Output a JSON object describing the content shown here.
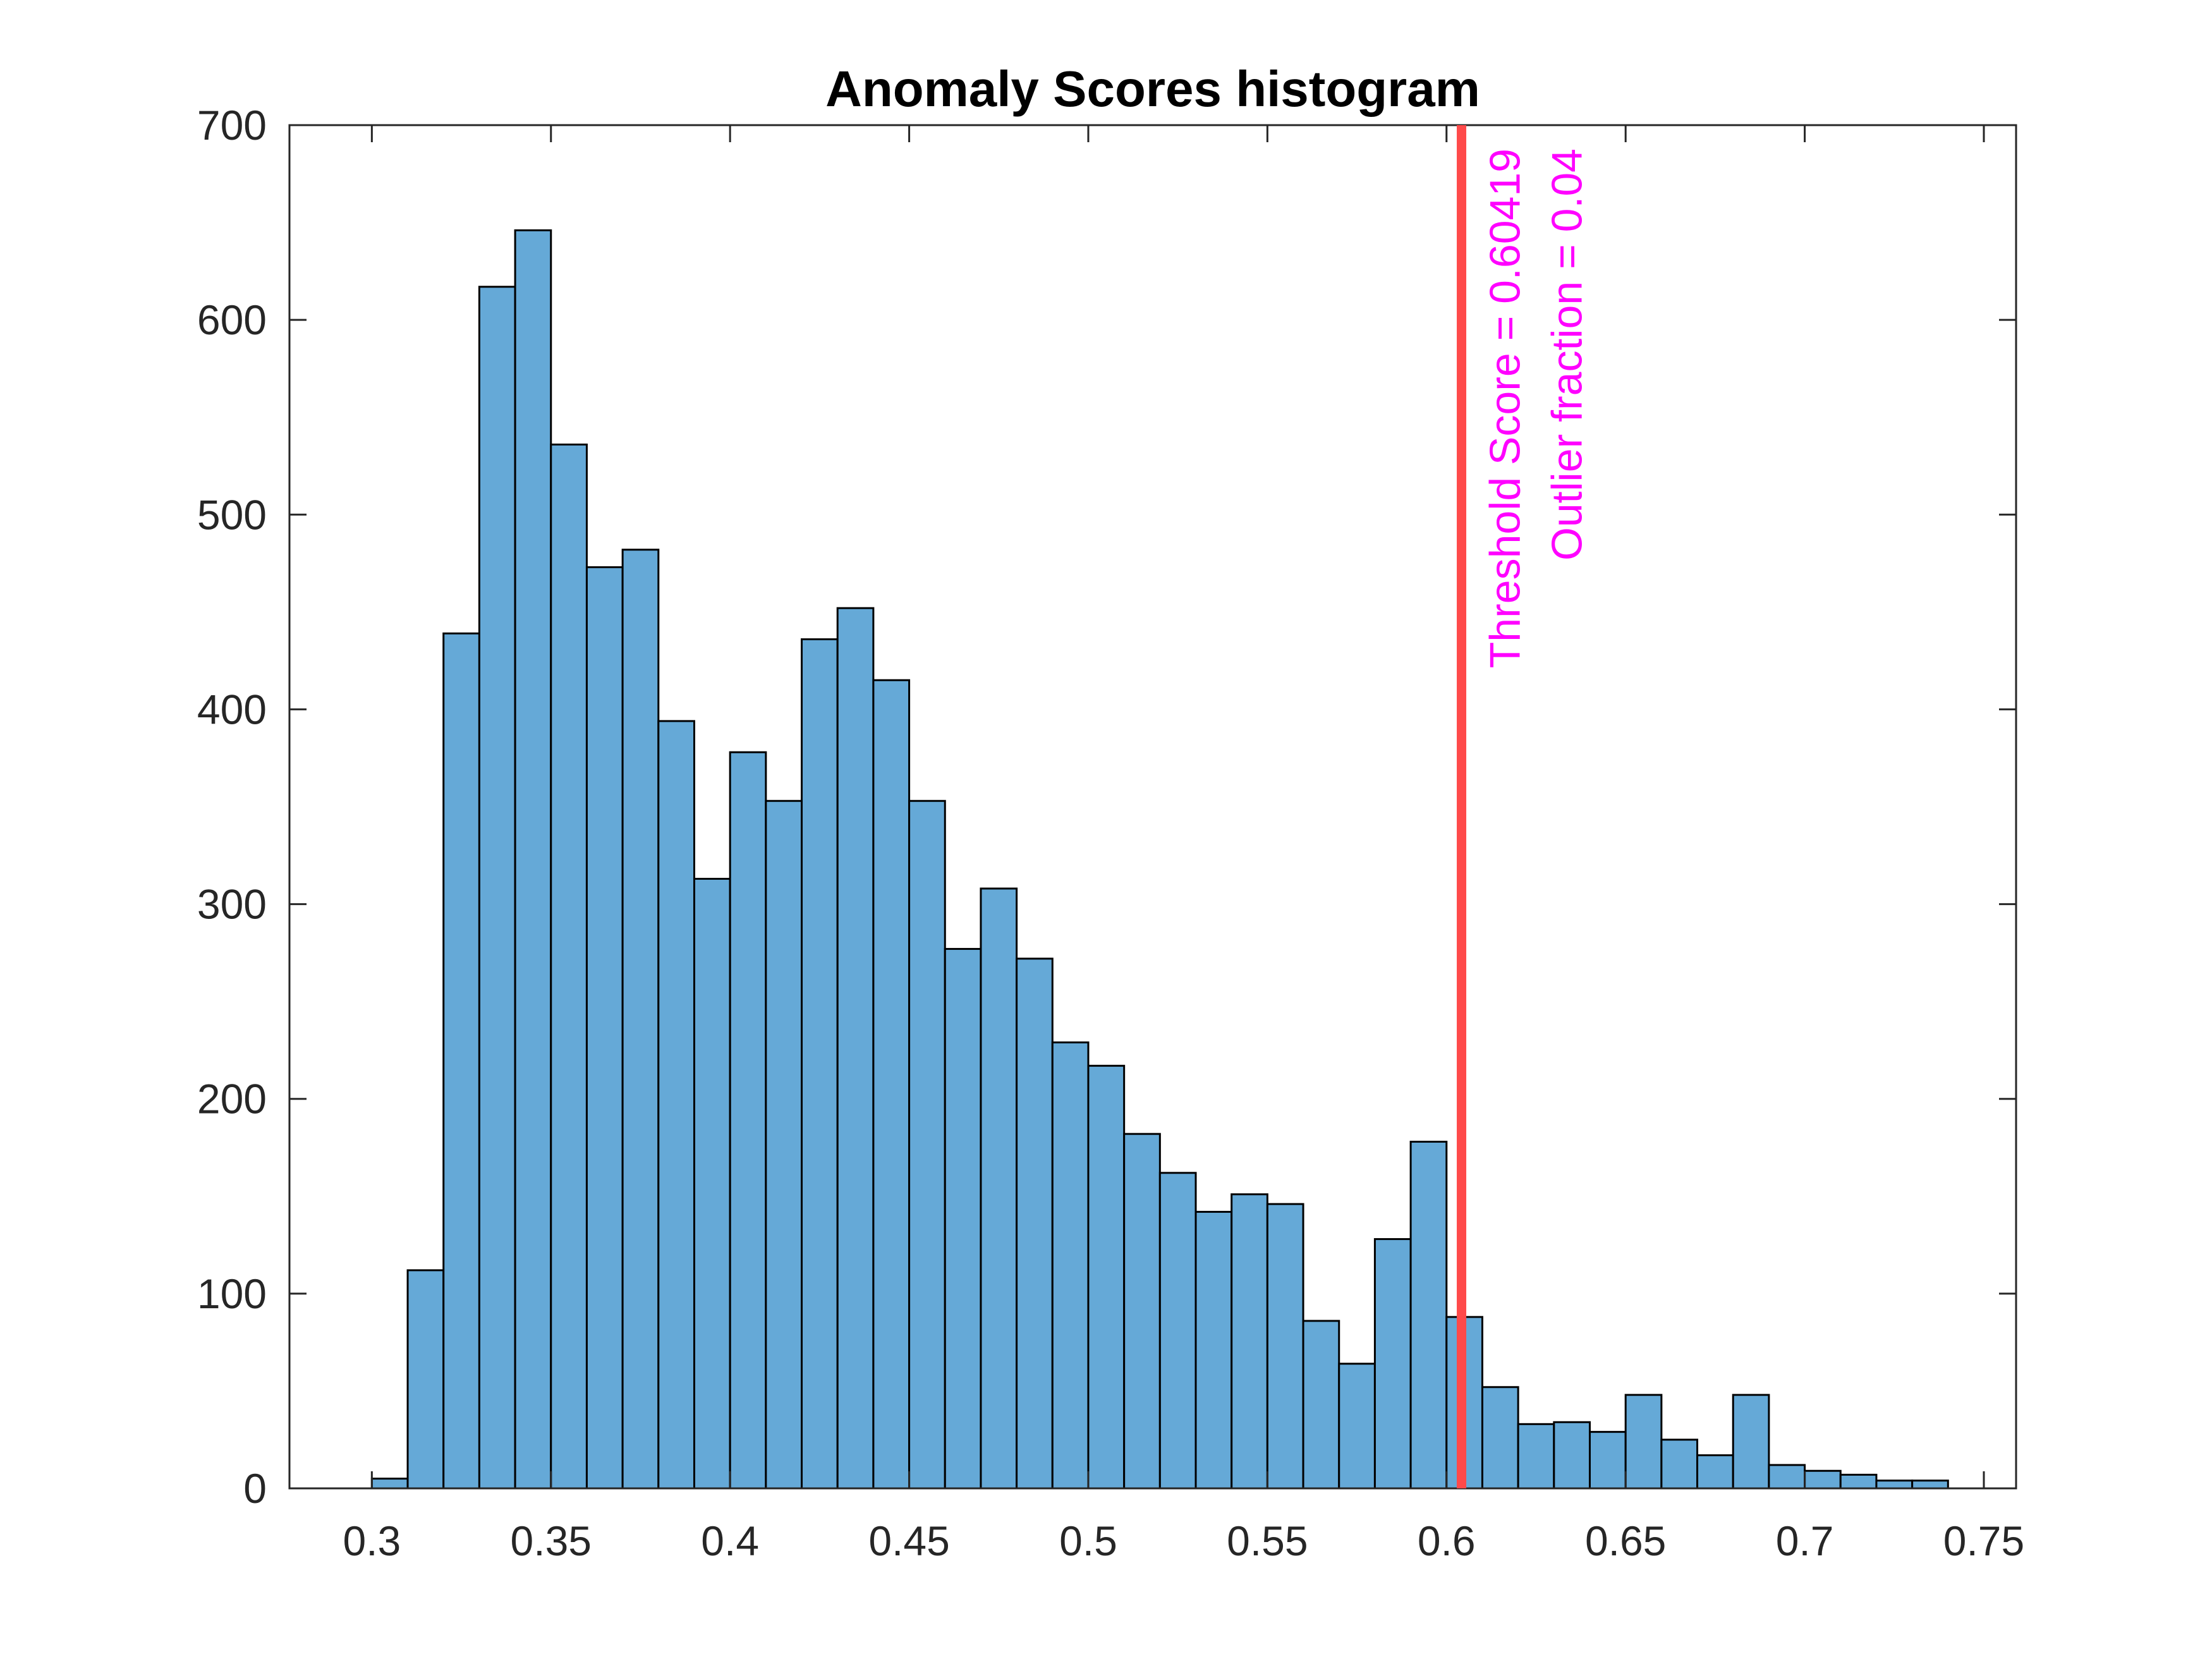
{
  "chart_data": {
    "type": "bar",
    "title": "Anomaly Scores histogram",
    "xlabel": "",
    "ylabel": "",
    "xlim": [
      0.277,
      0.759
    ],
    "ylim": [
      0,
      700
    ],
    "grid": false,
    "bin_edges": [
      0.3,
      0.31,
      0.32,
      0.33,
      0.34,
      0.35,
      0.36,
      0.37,
      0.38,
      0.39,
      0.4,
      0.41,
      0.42,
      0.43,
      0.44,
      0.45,
      0.46,
      0.47,
      0.48,
      0.49,
      0.5,
      0.51,
      0.52,
      0.53,
      0.54,
      0.55,
      0.56,
      0.57,
      0.58,
      0.59,
      0.6,
      0.61,
      0.62,
      0.63,
      0.64,
      0.65,
      0.66,
      0.67,
      0.68,
      0.69,
      0.7,
      0.71,
      0.72,
      0.73,
      0.74
    ],
    "values": [
      5,
      112,
      439,
      617,
      646,
      536,
      473,
      482,
      394,
      313,
      378,
      353,
      436,
      452,
      415,
      353,
      277,
      308,
      272,
      229,
      217,
      182,
      162,
      142,
      151,
      146,
      86,
      64,
      128,
      178,
      88,
      52,
      33,
      34,
      29,
      48,
      25,
      17,
      48,
      12,
      9,
      7,
      4,
      4
    ],
    "xticks": [
      0.3,
      0.35,
      0.4,
      0.45,
      0.5,
      0.55,
      0.6,
      0.65,
      0.7,
      0.75
    ],
    "xtick_labels": [
      "0.3",
      "0.35",
      "0.4",
      "0.45",
      "0.5",
      "0.55",
      "0.6",
      "0.65",
      "0.7",
      "0.75"
    ],
    "yticks": [
      0,
      100,
      200,
      300,
      400,
      500,
      600,
      700
    ],
    "ytick_labels": [
      "0",
      "100",
      "200",
      "300",
      "400",
      "500",
      "600",
      "700"
    ],
    "threshold": {
      "x": 0.60419,
      "lines": [
        "Threshold Score = 0.60419",
        "Outlier fraction = 0.04"
      ]
    },
    "colors": {
      "bar_fill": "#65a9d7",
      "bar_edge": "#000000",
      "threshold_line": "#ff4a4a",
      "annotation_text": "#ff00ff",
      "axes": "#262626"
    }
  }
}
